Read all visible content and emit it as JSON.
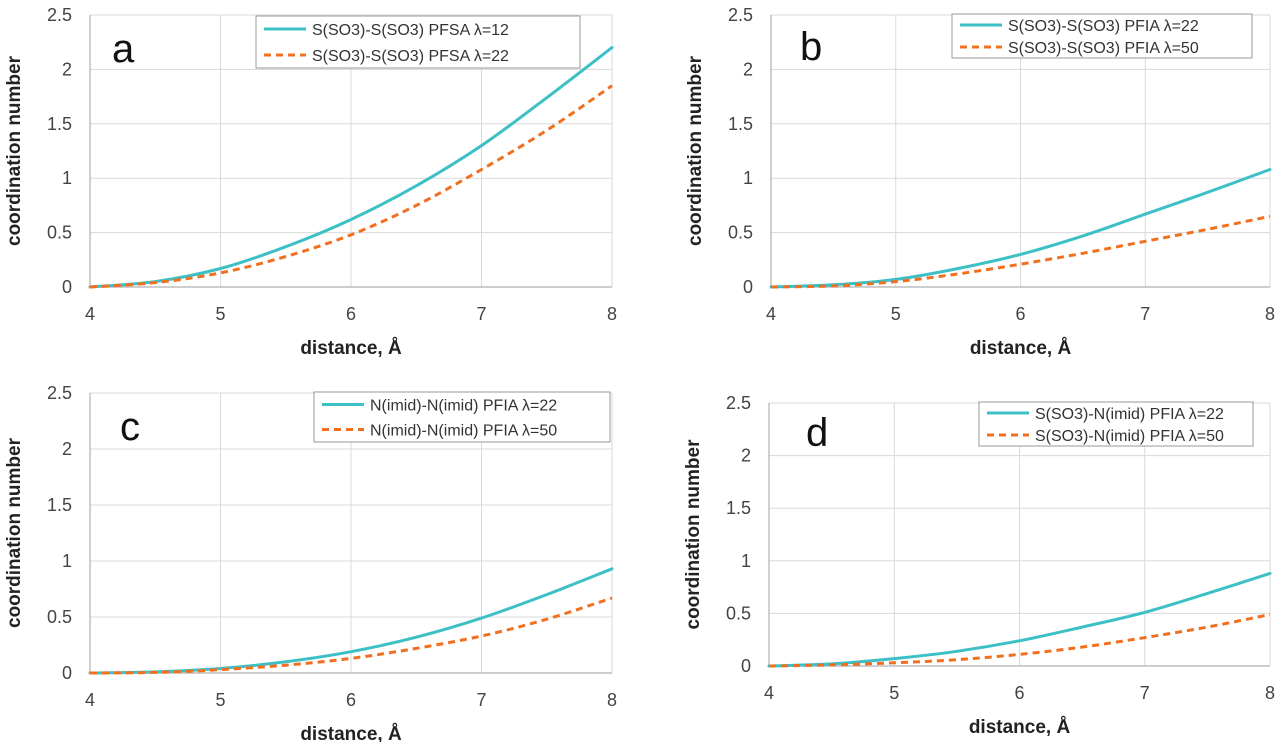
{
  "colors": {
    "series1": "#3cc0c6",
    "series2": "#f07020"
  },
  "chart_data": [
    {
      "type": "line",
      "panel_label": "a",
      "xlabel": "distance, Å",
      "ylabel": "coordination number",
      "xlim": [
        4,
        8
      ],
      "ylim": [
        0,
        2.5
      ],
      "xticks": [
        "4",
        "5",
        "6",
        "7",
        "8"
      ],
      "yticks": [
        "0",
        "0.5",
        "1",
        "1.5",
        "2",
        "2.5"
      ],
      "grid": true,
      "legend_position": "top-right",
      "x": [
        4,
        4.5,
        5,
        5.5,
        6,
        6.5,
        7,
        7.5,
        8
      ],
      "series": [
        {
          "name": "S(SO3)-S(SO3) PFSA  λ=12",
          "style": "solid",
          "values": [
            0,
            0.05,
            0.17,
            0.37,
            0.62,
            0.93,
            1.3,
            1.74,
            2.2
          ]
        },
        {
          "name": "S(SO3)-S(SO3) PFSA λ=22",
          "style": "dashed",
          "values": [
            0,
            0.04,
            0.13,
            0.28,
            0.48,
            0.75,
            1.08,
            1.44,
            1.85
          ]
        }
      ]
    },
    {
      "type": "line",
      "panel_label": "b",
      "xlabel": "distance, Å",
      "ylabel": "coordination number",
      "xlim": [
        4,
        8
      ],
      "ylim": [
        0,
        2.5
      ],
      "xticks": [
        "4",
        "5",
        "6",
        "7",
        "8"
      ],
      "yticks": [
        "0",
        "0.5",
        "1",
        "1.5",
        "2",
        "2.5"
      ],
      "grid": true,
      "legend_position": "top-right",
      "x": [
        4,
        4.5,
        5,
        5.5,
        6,
        6.5,
        7,
        7.5,
        8
      ],
      "series": [
        {
          "name": "S(SO3)-S(SO3) PFIA λ=22",
          "style": "solid",
          "values": [
            0,
            0.02,
            0.07,
            0.17,
            0.3,
            0.47,
            0.67,
            0.87,
            1.08
          ]
        },
        {
          "name": "S(SO3)-S(SO3) PFIA λ=50",
          "style": "dashed",
          "values": [
            0,
            0.01,
            0.05,
            0.12,
            0.21,
            0.31,
            0.42,
            0.53,
            0.65
          ]
        }
      ]
    },
    {
      "type": "line",
      "panel_label": "c",
      "xlabel": "distance, Å",
      "ylabel": "coordination number",
      "xlim": [
        4,
        8
      ],
      "ylim": [
        0,
        2.5
      ],
      "xticks": [
        "4",
        "5",
        "6",
        "7",
        "8"
      ],
      "yticks": [
        "0",
        "0.5",
        "1",
        "1.5",
        "2",
        "2.5"
      ],
      "grid": true,
      "legend_position": "top-right",
      "x": [
        4,
        4.5,
        5,
        5.5,
        6,
        6.5,
        7,
        7.5,
        8
      ],
      "series": [
        {
          "name": "N(imid)-N(imid) PFIA  λ=22",
          "style": "solid",
          "values": [
            0,
            0.01,
            0.04,
            0.1,
            0.19,
            0.32,
            0.49,
            0.7,
            0.93
          ]
        },
        {
          "name": "N(imid)-N(imid) PFIA  λ=50",
          "style": "dashed",
          "values": [
            0,
            0.005,
            0.03,
            0.07,
            0.13,
            0.22,
            0.33,
            0.48,
            0.67
          ]
        }
      ]
    },
    {
      "type": "line",
      "panel_label": "d",
      "xlabel": "distance, Å",
      "ylabel": "coordination number",
      "xlim": [
        4,
        8
      ],
      "ylim": [
        0,
        2.5
      ],
      "xticks": [
        "4",
        "5",
        "6",
        "7",
        "8"
      ],
      "yticks": [
        "0",
        "0.5",
        "1",
        "1.5",
        "2",
        "2.5"
      ],
      "grid": true,
      "legend_position": "top-right",
      "x": [
        4,
        4.5,
        5,
        5.5,
        6,
        6.5,
        7,
        7.5,
        8
      ],
      "series": [
        {
          "name": "S(SO3)-N(imid) PFIA λ=22",
          "style": "solid",
          "values": [
            0,
            0.02,
            0.07,
            0.14,
            0.24,
            0.37,
            0.51,
            0.69,
            0.88
          ]
        },
        {
          "name": "S(SO3)-N(imid) PFIA λ=50",
          "style": "dashed",
          "values": [
            0,
            0.01,
            0.03,
            0.06,
            0.11,
            0.18,
            0.27,
            0.37,
            0.49
          ]
        }
      ]
    }
  ]
}
